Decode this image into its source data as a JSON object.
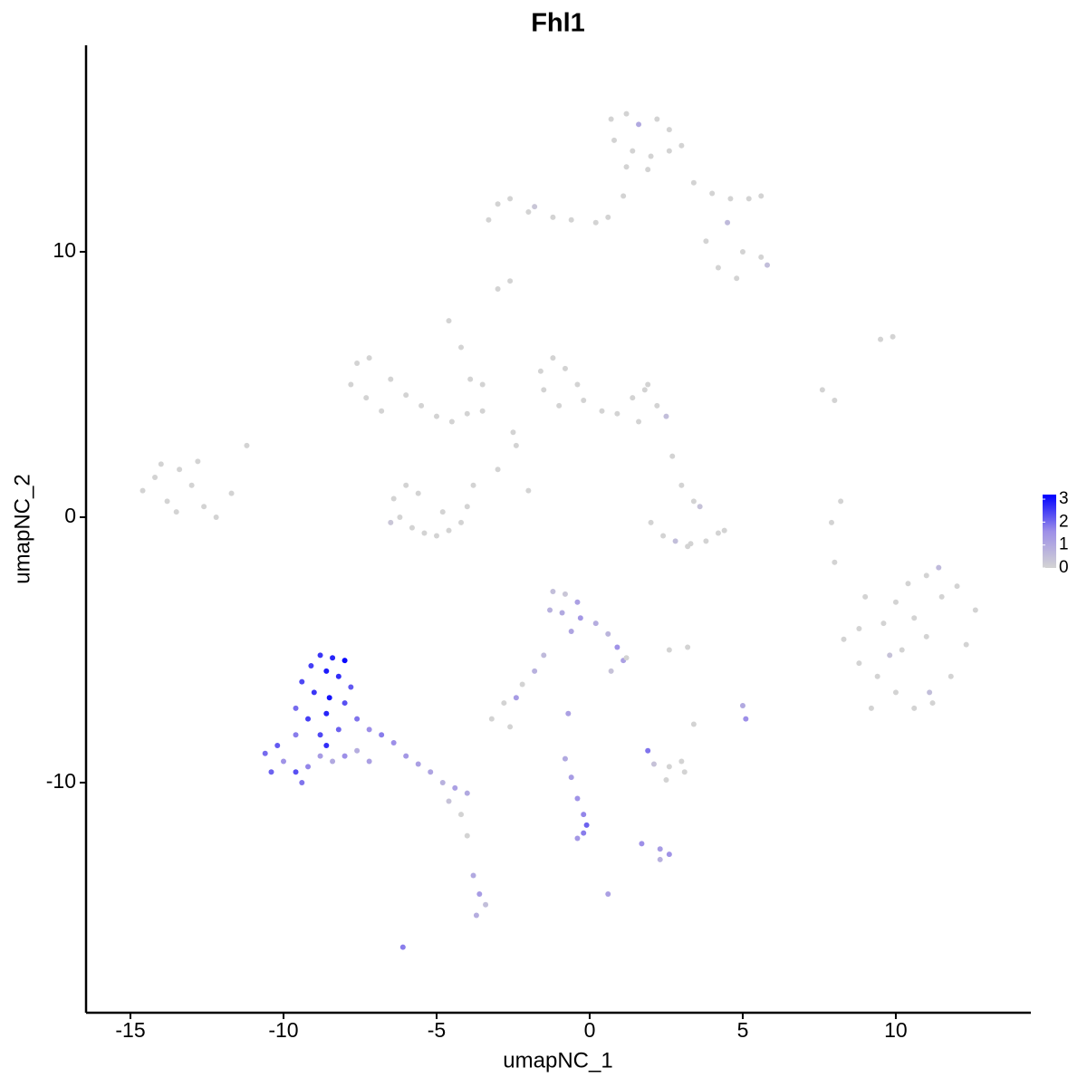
{
  "chart_data": {
    "type": "scatter",
    "title": "Fhl1",
    "x_label": "umapNC_1",
    "y_label": "umapNC_2",
    "xlim": [
      -16.45,
      14.41
    ],
    "ylim": [
      -18.67,
      17.78
    ],
    "xticks": [
      -15,
      -10,
      -5,
      0,
      5,
      10
    ],
    "yticks": [
      -10,
      0,
      10
    ],
    "colors": [
      "#d3d3d3",
      "#9d8fe8",
      "#0000ff"
    ],
    "colorbar": {
      "lim": [
        0,
        3.2
      ],
      "ticks": [
        0,
        1,
        2,
        3
      ]
    },
    "x": [
      -14.6,
      -14.2,
      -13.8,
      -13.4,
      -13.0,
      -12.6,
      -13.5,
      -14.0,
      -12.8,
      -12.2,
      -11.7,
      -11.2,
      -7.6,
      -7.2,
      -7.8,
      -7.3,
      -6.8,
      -6.5,
      -6.0,
      -5.5,
      -5.0,
      -4.5,
      -4.0,
      -3.5,
      -4.6,
      -4.2,
      -3.9,
      -3.5,
      -6.4,
      -6.2,
      -5.8,
      -5.4,
      -5.0,
      -4.6,
      -4.2,
      -4.0,
      -3.8,
      -5.6,
      -6.0,
      -4.8,
      -6.5,
      -1.6,
      -1.2,
      -0.8,
      -0.4,
      -1.5,
      -1.0,
      -0.2,
      0.4,
      0.9,
      1.4,
      1.8,
      2.2,
      2.5,
      1.6,
      -2.4,
      -2.5,
      -3.0,
      -2.0,
      1.9,
      2.7,
      3.0,
      3.4,
      3.6,
      2.0,
      2.4,
      2.8,
      3.3,
      3.8,
      4.2,
      4.4,
      3.2,
      0.7,
      1.2,
      1.6,
      2.2,
      2.6,
      0.8,
      1.4,
      2.0,
      2.6,
      1.2,
      1.9,
      3.0,
      1.1,
      0.6,
      0.2,
      -0.6,
      -1.2,
      -2.0,
      -2.6,
      -3.0,
      -3.3,
      -1.8,
      3.4,
      4.0,
      4.6,
      5.2,
      5.6,
      4.5,
      5.0,
      5.6,
      5.8,
      4.2,
      4.8,
      3.8,
      -3.0,
      -2.6,
      8.3,
      8.8,
      9.2,
      9.6,
      10.0,
      10.4,
      11.0,
      11.5,
      12.0,
      12.6,
      12.3,
      11.8,
      11.2,
      10.6,
      10.0,
      9.4,
      10.2,
      11.0,
      10.6,
      9.8,
      11.1,
      8.8,
      9.0,
      11.4,
      7.6,
      8.0,
      9.5,
      9.9,
      8.2,
      7.9,
      8.0,
      -8.8,
      -8.4,
      -8.0,
      -9.1,
      -8.6,
      -9.4,
      -8.2,
      -7.8,
      -9.0,
      -8.5,
      -8.0,
      -9.6,
      -9.2,
      -8.6,
      -7.6,
      -7.2,
      -8.2,
      -8.8,
      -9.6,
      -10.2,
      -10.6,
      -10.0,
      -9.6,
      -9.2,
      -8.8,
      -8.4,
      -8.0,
      -7.6,
      -7.2,
      -9.4,
      -10.4,
      -8.6,
      -6.8,
      -6.4,
      -6.0,
      -5.6,
      -5.2,
      -4.8,
      -4.4,
      -4.0,
      -4.6,
      -4.2,
      -4.0,
      -3.8,
      -3.6,
      -3.4,
      -3.7,
      -6.1,
      -1.2,
      -0.8,
      -0.4,
      -1.3,
      -0.9,
      -0.3,
      0.2,
      0.6,
      -0.6,
      0.9,
      1.1,
      0.7,
      -1.5,
      -1.8,
      -2.2,
      -2.8,
      -3.2,
      -2.4,
      -0.7,
      1.2,
      -0.8,
      -0.6,
      -0.4,
      -0.2,
      -0.1,
      -0.2,
      -0.4,
      1.7,
      2.3,
      2.6,
      2.3,
      0.6,
      1.9,
      2.1,
      2.6,
      3.1,
      2.5,
      3.0,
      5.0,
      5.1,
      2.6,
      3.2,
      3.4,
      -2.6
    ],
    "y": [
      1.0,
      1.5,
      0.6,
      1.8,
      1.2,
      0.4,
      0.2,
      2.0,
      2.1,
      0.0,
      0.9,
      2.7,
      5.8,
      6.0,
      5.0,
      4.5,
      4.0,
      5.2,
      4.6,
      4.2,
      3.8,
      3.6,
      3.9,
      4.0,
      7.4,
      6.4,
      5.2,
      5.0,
      0.7,
      0.0,
      -0.4,
      -0.6,
      -0.7,
      -0.5,
      -0.2,
      0.4,
      1.2,
      0.9,
      1.2,
      0.2,
      -0.2,
      5.5,
      6.0,
      5.6,
      5.0,
      4.8,
      4.2,
      4.4,
      4.0,
      3.9,
      4.5,
      4.8,
      4.2,
      3.8,
      3.6,
      2.7,
      3.2,
      1.8,
      1.0,
      5.0,
      2.3,
      1.2,
      0.6,
      0.4,
      -0.2,
      -0.7,
      -0.9,
      -1.0,
      -0.9,
      -0.6,
      -0.5,
      -1.1,
      15.0,
      15.2,
      14.8,
      15.0,
      14.6,
      14.2,
      13.8,
      13.6,
      13.8,
      13.2,
      13.1,
      14.0,
      12.1,
      11.3,
      11.1,
      11.2,
      11.3,
      11.5,
      12.0,
      11.8,
      11.2,
      11.7,
      12.6,
      12.2,
      12.0,
      12.0,
      12.1,
      11.1,
      10.0,
      9.8,
      9.5,
      9.4,
      9.0,
      10.4,
      8.6,
      8.9,
      -4.6,
      -5.5,
      -7.2,
      -4.0,
      -3.2,
      -2.5,
      -2.2,
      -3.0,
      -2.6,
      -3.5,
      -4.8,
      -6.0,
      -7.0,
      -7.2,
      -6.6,
      -6.0,
      -5.0,
      -4.5,
      -3.8,
      -5.2,
      -6.6,
      -4.2,
      -3.0,
      -1.9,
      4.8,
      4.4,
      6.7,
      6.8,
      0.6,
      -0.2,
      -1.7,
      -5.2,
      -5.3,
      -5.4,
      -5.6,
      -5.8,
      -6.2,
      -6.0,
      -6.4,
      -6.6,
      -6.8,
      -7.0,
      -7.2,
      -7.6,
      -7.4,
      -7.6,
      -8.0,
      -8.0,
      -8.2,
      -8.2,
      -8.6,
      -8.9,
      -9.2,
      -9.6,
      -9.4,
      -9.0,
      -9.2,
      -9.0,
      -8.8,
      -9.2,
      -10.0,
      -9.6,
      -8.6,
      -8.2,
      -8.5,
      -9.0,
      -9.3,
      -9.6,
      -10.0,
      -10.2,
      -10.4,
      -10.7,
      -11.2,
      -12.0,
      -13.5,
      -14.2,
      -14.6,
      -15.0,
      -16.2,
      -2.8,
      -2.9,
      -3.2,
      -3.5,
      -3.6,
      -3.8,
      -4.0,
      -4.4,
      -4.3,
      -4.9,
      -5.4,
      -5.8,
      -5.2,
      -5.8,
      -6.3,
      -7.0,
      -7.6,
      -6.8,
      -7.4,
      -5.3,
      -9.1,
      -9.8,
      -10.6,
      -11.2,
      -11.6,
      -11.9,
      -12.1,
      -12.3,
      -12.5,
      -12.7,
      -12.9,
      -14.2,
      -8.8,
      -9.3,
      -9.4,
      -9.6,
      -9.9,
      -9.2,
      -7.1,
      -7.6,
      -5.0,
      -4.9,
      -7.8,
      -7.9
    ],
    "values": [
      0,
      0,
      0,
      0,
      0,
      0,
      0,
      0,
      0,
      0,
      0,
      0,
      0,
      0,
      0,
      0,
      0,
      0,
      0,
      0,
      0,
      0,
      0,
      0,
      0,
      0,
      0,
      0,
      0,
      0,
      0,
      0,
      0,
      0,
      0,
      0,
      0,
      0,
      0,
      0,
      0.3,
      0,
      0,
      0,
      0,
      0,
      0,
      0,
      0,
      0,
      0,
      0,
      0,
      0.5,
      0,
      0,
      0,
      0,
      0,
      0,
      0,
      0,
      0,
      0.4,
      0,
      0,
      0.5,
      0,
      0,
      0,
      0,
      0,
      0,
      0,
      1,
      0,
      0,
      0,
      0,
      0,
      0,
      0,
      0,
      0,
      0,
      0,
      0,
      0,
      0,
      0,
      0,
      0,
      0,
      0.3,
      0,
      0,
      0,
      0,
      0,
      0.6,
      0,
      0,
      0.5,
      0,
      0,
      0,
      0,
      0,
      0,
      0,
      0,
      0,
      0,
      0,
      0,
      0,
      0,
      0,
      0,
      0,
      0,
      0,
      0,
      0,
      0,
      0,
      0,
      0.4,
      0.5,
      0,
      0,
      0.6,
      0,
      0,
      0,
      0,
      0,
      0,
      0,
      2.6,
      2.8,
      3.1,
      2.5,
      2.9,
      2.4,
      2.7,
      2.2,
      2.6,
      3.0,
      2.3,
      2.0,
      2.5,
      2.8,
      1.9,
      1.6,
      2.1,
      2.4,
      1.8,
      2.2,
      2.0,
      1.5,
      2.3,
      1.7,
      1.3,
      1.0,
      1.6,
      0.9,
      1.2,
      1.9,
      2.1,
      2.7,
      1.8,
      1.6,
      1.4,
      1.2,
      1.1,
      0.8,
      1.2,
      1.0,
      0.4,
      0,
      0,
      1.0,
      1.3,
      0.5,
      0.9,
      1.8,
      0.5,
      0.3,
      1.2,
      0.8,
      1.0,
      1.4,
      0.9,
      0.7,
      1.1,
      1.5,
      1.2,
      0.4,
      0.6,
      0.8,
      0,
      0,
      0,
      1.3,
      1.2,
      0,
      1.0,
      1.3,
      1.5,
      1.7,
      2.1,
      1.8,
      1.4,
      1.6,
      1.3,
      1.5,
      0.8,
      1.2,
      1.9,
      0.4,
      0,
      0,
      0,
      0,
      1.0,
      1.6,
      0,
      0,
      0,
      0
    ]
  }
}
